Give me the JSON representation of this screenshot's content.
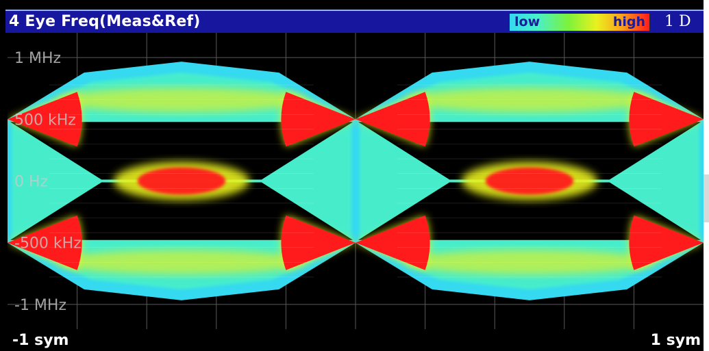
{
  "window": {
    "title": "4 Eye Freq(Meas&Ref)",
    "trace_label": "1 D"
  },
  "legend": {
    "low_label": "low",
    "high_label": "high",
    "gradient_colors": [
      "#35d9f0",
      "#49f0c8",
      "#7cf23a",
      "#e9f11f",
      "#fca31a",
      "#ff1b1b"
    ]
  },
  "colors": {
    "title_bar": "#16179e",
    "background": "#000000",
    "grid": "#5a5a5a",
    "envelope": "#35d9f0",
    "density_low": "#49f0c8",
    "density_mid": "#e9f11f",
    "density_high": "#ff1b1b"
  },
  "chart_data": {
    "type": "heatmap",
    "title": "4 Eye Freq(Meas&Ref)",
    "xlabel": "",
    "ylabel": "",
    "x_range_label": {
      "min": "-1 sym",
      "max": "1 sym"
    },
    "xlim": [
      -1,
      1
    ],
    "ylim": [
      -1.2,
      1.2
    ],
    "y_unit": "MHz",
    "yticks": [
      {
        "value": 1.0,
        "label": "1 MHz"
      },
      {
        "value": 0.5,
        "label": "500 kHz"
      },
      {
        "value": 0.0,
        "label": "0 Hz"
      },
      {
        "value": -0.5,
        "label": "-500 kHz"
      },
      {
        "value": -1.0,
        "label": "-1 MHz"
      }
    ],
    "x_grid_divisions": 10,
    "y_grid_divisions": 5,
    "grid": true,
    "levels_MHz": [
      -1.0,
      -0.5,
      0.0,
      0.5,
      1.0
    ],
    "symbol_crossings_x": [
      -1,
      0,
      1
    ],
    "eye_openings": 2,
    "color_scale": [
      "low",
      "high"
    ]
  }
}
